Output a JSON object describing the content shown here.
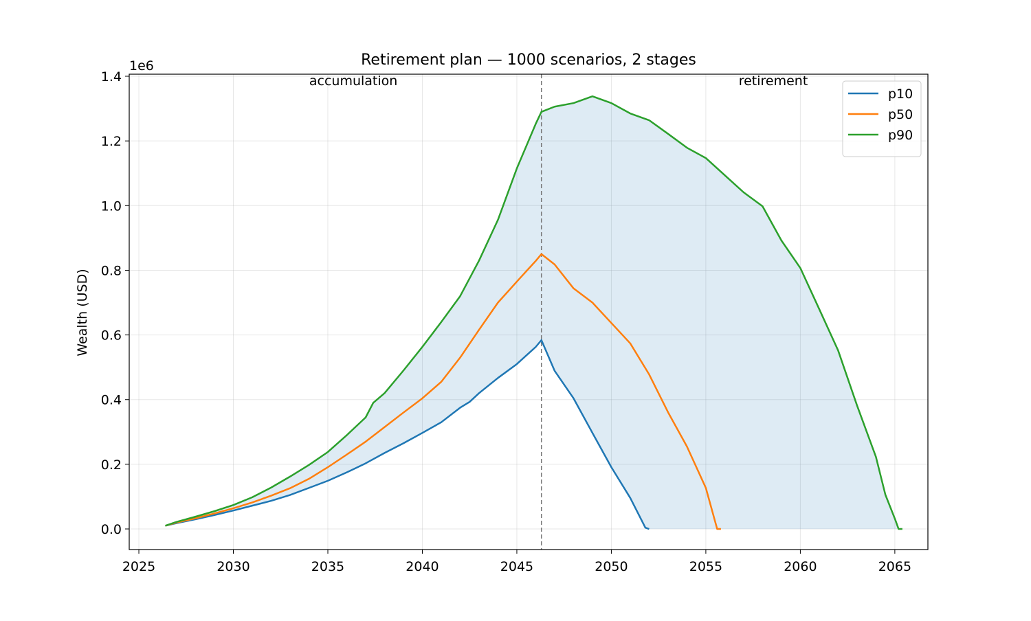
{
  "chart_data": {
    "type": "line",
    "title": "Retirement plan — 1000 scenarios, 2 stages",
    "ylabel": "Wealth (USD)",
    "y_offset_text": "1e6",
    "xlim": [
      2024.49,
      2066.75
    ],
    "ylim": [
      -0.0637,
      1.4064
    ],
    "xticks": [
      2025,
      2030,
      2035,
      2040,
      2045,
      2050,
      2055,
      2060,
      2065
    ],
    "yticks": [
      {
        "value": 0,
        "label": "0.0"
      },
      0.2,
      0.4,
      0.6,
      0.8,
      {
        "value": 1,
        "label": "1.0"
      },
      1.2,
      1.4
    ],
    "grid": true,
    "legend": "upper right",
    "stage_boundary": 2046.3,
    "stages": [
      "accumulation",
      "retirement"
    ],
    "band": {
      "between": [
        0,
        2
      ],
      "color": "#1f77b4",
      "opacity": 0.15
    },
    "series": [
      {
        "name": "p10",
        "color": "#1f77b4",
        "x": [
          2026.4,
          2027,
          2028,
          2029,
          2030,
          2031,
          2032,
          2033,
          2034,
          2035,
          2036,
          2037,
          2038,
          2039,
          2040,
          2041,
          2042,
          2042.5,
          2043,
          2044,
          2045,
          2046,
          2046.3,
          2047,
          2048,
          2049,
          2050,
          2051,
          2051.8,
          2052
        ],
        "values": [
          0.01,
          0.018,
          0.03,
          0.043,
          0.057,
          0.072,
          0.087,
          0.105,
          0.127,
          0.149,
          0.175,
          0.203,
          0.235,
          0.265,
          0.297,
          0.33,
          0.375,
          0.393,
          0.42,
          0.467,
          0.51,
          0.563,
          0.584,
          0.489,
          0.404,
          0.297,
          0.191,
          0.096,
          0.004,
          0
        ]
      },
      {
        "name": "p50",
        "color": "#ff7f0e",
        "x": [
          2026.4,
          2027,
          2028,
          2029,
          2030,
          2031,
          2032,
          2033,
          2034,
          2035,
          2036,
          2037,
          2038,
          2039,
          2040,
          2041,
          2042,
          2043,
          2044,
          2045,
          2046,
          2046.3,
          2047,
          2048,
          2049,
          2050,
          2051,
          2052,
          2053,
          2054,
          2055,
          2055.6,
          2055.8
        ],
        "values": [
          0.01,
          0.02,
          0.033,
          0.048,
          0.064,
          0.082,
          0.103,
          0.126,
          0.155,
          0.191,
          0.23,
          0.27,
          0.315,
          0.36,
          0.404,
          0.455,
          0.53,
          0.616,
          0.7,
          0.765,
          0.829,
          0.85,
          0.818,
          0.744,
          0.7,
          0.637,
          0.574,
          0.478,
          0.361,
          0.255,
          0.127,
          0,
          0
        ]
      },
      {
        "name": "p90",
        "color": "#2ca02c",
        "x": [
          2026.4,
          2027,
          2028,
          2029,
          2030,
          2031,
          2032,
          2033,
          2034,
          2035,
          2036,
          2037,
          2037.4,
          2038,
          2039,
          2040,
          2041,
          2042,
          2042.5,
          2043,
          2044,
          2045,
          2046,
          2046.3,
          2047,
          2048,
          2049,
          2050,
          2051,
          2052,
          2053,
          2054,
          2055,
          2056,
          2057,
          2058,
          2059,
          2060,
          2061,
          2062,
          2063,
          2064,
          2064.5,
          2065,
          2065.2,
          2065.4
        ],
        "values": [
          0.01,
          0.022,
          0.038,
          0.055,
          0.074,
          0.098,
          0.128,
          0.162,
          0.198,
          0.238,
          0.29,
          0.345,
          0.39,
          0.42,
          0.49,
          0.563,
          0.64,
          0.72,
          0.775,
          0.83,
          0.956,
          1.115,
          1.253,
          1.29,
          1.306,
          1.317,
          1.338,
          1.317,
          1.285,
          1.264,
          1.222,
          1.179,
          1.147,
          1.094,
          1.041,
          0.998,
          0.892,
          0.807,
          0.68,
          0.552,
          0.382,
          0.223,
          0.106,
          0.032,
          0,
          0
        ]
      }
    ]
  }
}
